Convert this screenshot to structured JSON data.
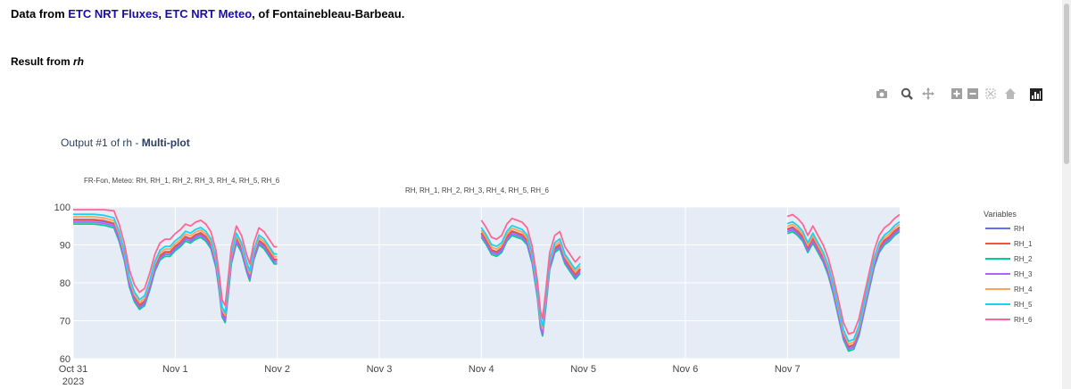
{
  "header": {
    "prefix": "Data from ",
    "source1": "ETC NRT Fluxes",
    "sep": ", ",
    "source2": "ETC NRT Meteo",
    "suffix": ", of Fontainebleau-Barbeau."
  },
  "result": {
    "prefix": "Result from ",
    "name": "rh"
  },
  "toolbar": {
    "icons": [
      "camera-icon",
      "zoom-icon",
      "pan-icon",
      "zoom-in-icon",
      "zoom-out-icon",
      "autoscale-icon",
      "reset-axes-icon",
      "plotly-logo-icon"
    ]
  },
  "plot": {
    "title_prefix": "Output #1 of rh - ",
    "title_bold": "Multi-plot"
  },
  "chart_data": {
    "type": "line",
    "subplot_titles": [
      "FR-Fon, Meteo: RH, RH_1, RH_2, RH_3, RH_4, RH_5, RH_6",
      "RH, RH_1, RH_2, RH_3, RH_4, RH_5, RH_6"
    ],
    "legend_title": "Variables",
    "legend_position": "right",
    "grid": true,
    "ylim": [
      60,
      100
    ],
    "y_ticks": [
      60,
      70,
      80,
      90,
      100
    ],
    "x_range": [
      0,
      8.1
    ],
    "x_ticks": [
      {
        "at": 0,
        "label": "Oct 31",
        "sub": "2023"
      },
      {
        "at": 1,
        "label": "Nov 1",
        "sub": ""
      },
      {
        "at": 2,
        "label": "Nov 2",
        "sub": ""
      },
      {
        "at": 3,
        "label": "Nov 3",
        "sub": ""
      },
      {
        "at": 4,
        "label": "Nov 4",
        "sub": ""
      },
      {
        "at": 5,
        "label": "Nov 5",
        "sub": ""
      },
      {
        "at": 6,
        "label": "Nov 6",
        "sub": ""
      },
      {
        "at": 7,
        "label": "Nov 7",
        "sub": ""
      }
    ],
    "series": [
      {
        "name": "RH",
        "color": "#636efa",
        "offset": 0
      },
      {
        "name": "RH_1",
        "color": "#ef553b",
        "offset": 0.2
      },
      {
        "name": "RH_2",
        "color": "#00cc96",
        "offset": -1.0
      },
      {
        "name": "RH_3",
        "color": "#ab63fa",
        "offset": -0.5
      },
      {
        "name": "RH_4",
        "color": "#ffa15a",
        "offset": 0.9
      },
      {
        "name": "RH_5",
        "color": "#19d3f3",
        "offset": 1.6
      },
      {
        "name": "RH_6",
        "color": "#ff6692",
        "offset": 3.5
      }
    ],
    "base_segments": [
      [
        [
          0.0,
          96.5
        ],
        [
          0.1,
          96.5
        ],
        [
          0.2,
          96.5
        ],
        [
          0.3,
          96.2
        ],
        [
          0.4,
          95.5
        ],
        [
          0.45,
          92.0
        ],
        [
          0.5,
          87.0
        ],
        [
          0.55,
          80.0
        ],
        [
          0.6,
          76.0
        ],
        [
          0.65,
          74.0
        ],
        [
          0.7,
          75.0
        ],
        [
          0.75,
          79.0
        ],
        [
          0.8,
          84.0
        ],
        [
          0.85,
          87.0
        ],
        [
          0.9,
          88.0
        ],
        [
          0.95,
          88.0
        ],
        [
          1.0,
          89.5
        ],
        [
          1.05,
          90.5
        ],
        [
          1.1,
          92.0
        ],
        [
          1.15,
          91.5
        ],
        [
          1.2,
          92.5
        ],
        [
          1.25,
          93.0
        ],
        [
          1.3,
          92.0
        ],
        [
          1.35,
          90.0
        ],
        [
          1.4,
          85.0
        ],
        [
          1.43,
          79.0
        ],
        [
          1.46,
          72.0
        ],
        [
          1.49,
          70.5
        ],
        [
          1.52,
          78.0
        ],
        [
          1.55,
          86.0
        ],
        [
          1.6,
          91.5
        ],
        [
          1.65,
          89.0
        ],
        [
          1.7,
          84.0
        ],
        [
          1.73,
          81.5
        ],
        [
          1.77,
          87.0
        ],
        [
          1.82,
          91.0
        ],
        [
          1.87,
          90.0
        ],
        [
          1.92,
          88.0
        ],
        [
          1.97,
          86.0
        ],
        [
          2.0,
          86.0
        ]
      ],
      [
        [
          4.0,
          93.0
        ],
        [
          4.05,
          91.0
        ],
        [
          4.1,
          88.5
        ],
        [
          4.15,
          88.0
        ],
        [
          4.2,
          89.0
        ],
        [
          4.25,
          92.0
        ],
        [
          4.3,
          93.5
        ],
        [
          4.35,
          93.0
        ],
        [
          4.4,
          92.5
        ],
        [
          4.45,
          91.0
        ],
        [
          4.5,
          86.0
        ],
        [
          4.55,
          77.0
        ],
        [
          4.58,
          69.0
        ],
        [
          4.6,
          67.0
        ],
        [
          4.63,
          74.0
        ],
        [
          4.67,
          84.5
        ],
        [
          4.72,
          89.0
        ],
        [
          4.77,
          90.0
        ],
        [
          4.82,
          86.0
        ],
        [
          4.87,
          84.0
        ],
        [
          4.92,
          82.0
        ],
        [
          4.97,
          83.5
        ]
      ],
      [
        [
          7.0,
          94.0
        ],
        [
          7.05,
          94.5
        ],
        [
          7.1,
          93.5
        ],
        [
          7.15,
          92.0
        ],
        [
          7.2,
          89.0
        ],
        [
          7.25,
          91.5
        ],
        [
          7.3,
          89.0
        ],
        [
          7.35,
          86.5
        ],
        [
          7.4,
          83.0
        ],
        [
          7.45,
          78.0
        ],
        [
          7.5,
          72.0
        ],
        [
          7.55,
          66.0
        ],
        [
          7.6,
          63.0
        ],
        [
          7.65,
          63.5
        ],
        [
          7.7,
          67.0
        ],
        [
          7.75,
          73.0
        ],
        [
          7.8,
          79.0
        ],
        [
          7.85,
          85.0
        ],
        [
          7.9,
          89.0
        ],
        [
          7.95,
          91.0
        ],
        [
          8.0,
          92.0
        ],
        [
          8.05,
          93.5
        ],
        [
          8.1,
          94.5
        ]
      ]
    ]
  }
}
